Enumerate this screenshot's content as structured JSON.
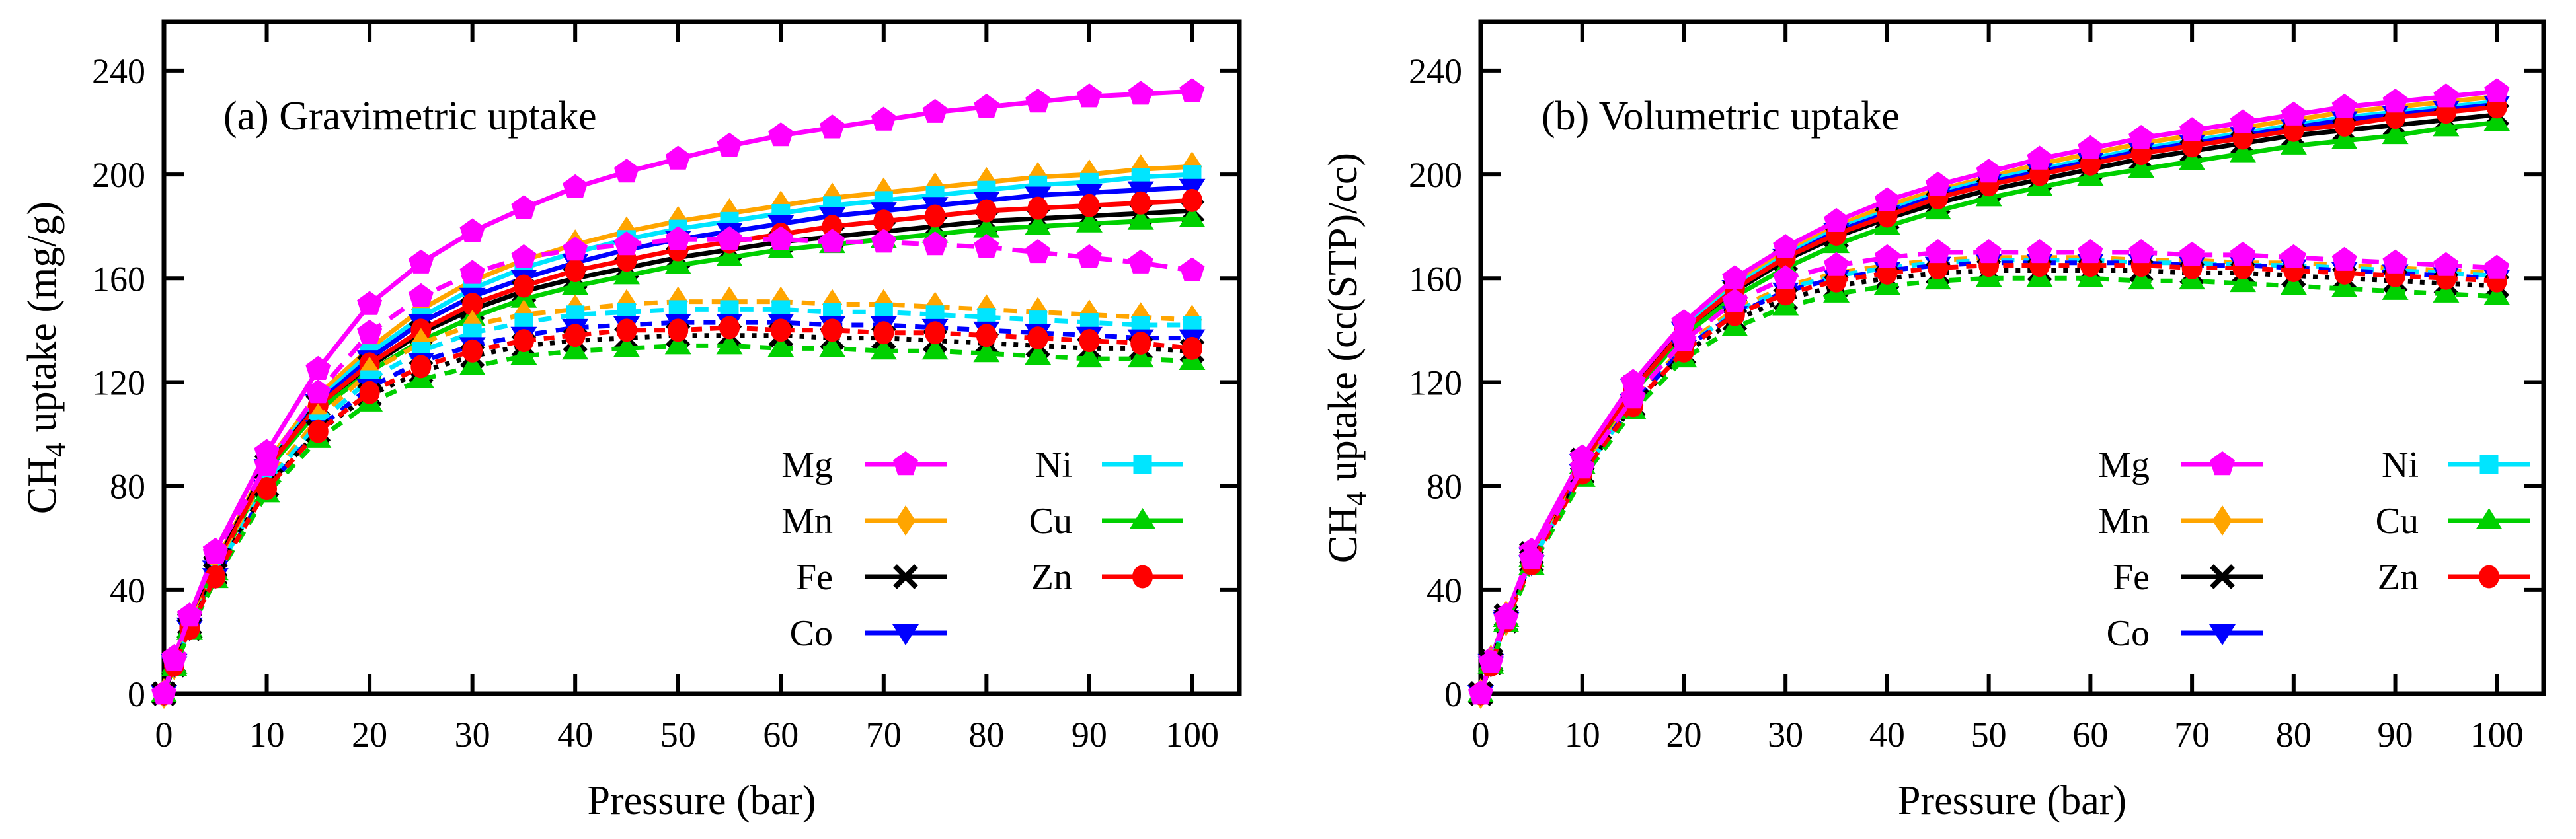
{
  "figure": {
    "background": "#ffffff",
    "xlabel": "Pressure (bar)",
    "x_ticks": [
      0,
      10,
      20,
      30,
      40,
      50,
      60,
      70,
      80,
      90,
      100
    ],
    "y_ticks": [
      0,
      40,
      80,
      120,
      160,
      200,
      240
    ],
    "legend": {
      "col1": [
        "Mg",
        "Mn",
        "Fe",
        "Co"
      ],
      "col2": [
        "Ni",
        "Cu",
        "Zn"
      ]
    },
    "series_styles": {
      "Mg": {
        "color": "#ff00ff",
        "marker": "pentagon-icon",
        "dash": "26 16"
      },
      "Mn": {
        "color": "#ffa500",
        "marker": "diamond-icon",
        "dash": "20 14"
      },
      "Fe": {
        "color": "#000000",
        "marker": "x-cross-icon",
        "dash": "7 11"
      },
      "Co": {
        "color": "#0000ff",
        "marker": "triangle-down-icon",
        "dash": "18 14"
      },
      "Ni": {
        "color": "#00e5ff",
        "marker": "square-icon",
        "dash": "20 14"
      },
      "Cu": {
        "color": "#00d000",
        "marker": "triangle-up-icon",
        "dash": "18 14"
      },
      "Zn": {
        "color": "#ff0000",
        "marker": "circle-icon",
        "dash": "16 12"
      }
    }
  },
  "chart_data": [
    {
      "type": "line",
      "panel": "a",
      "title": "(a) Gravimetric uptake",
      "xlabel": "Pressure (bar)",
      "ylabel": "CH4 uptake (mg/g)",
      "ylabel_parts": {
        "pre": "CH",
        "sub": "4",
        "post": " uptake (mg/g)"
      },
      "xlim": [
        0,
        104.6
      ],
      "ylim": [
        0,
        258.8
      ],
      "x_ticks": [
        0,
        10,
        20,
        30,
        40,
        50,
        60,
        70,
        80,
        90,
        100
      ],
      "y_ticks": [
        0,
        40,
        80,
        120,
        160,
        200,
        240
      ],
      "grid": false,
      "legend_position": "inside-lower-right",
      "x": [
        0,
        1,
        2.5,
        5,
        10,
        15,
        20,
        25,
        30,
        35,
        40,
        45,
        50,
        55,
        60,
        65,
        70,
        75,
        80,
        85,
        90,
        95,
        100
      ],
      "series": [
        {
          "name": "Mn",
          "style": "solid",
          "values": [
            0,
            12,
            27,
            50,
            89,
            115,
            133,
            148,
            159,
            167,
            173,
            178,
            182,
            185,
            188,
            191,
            193,
            195,
            197,
            199,
            200,
            202,
            203
          ]
        },
        {
          "name": "Ni",
          "style": "solid",
          "values": [
            0,
            12,
            26,
            49,
            88,
            113,
            131,
            145,
            156,
            164,
            170,
            175,
            179,
            182,
            185,
            188,
            190,
            192,
            194,
            196,
            197,
            199,
            200
          ]
        },
        {
          "name": "Co",
          "style": "solid",
          "values": [
            0,
            12,
            26,
            48,
            87,
            112,
            129,
            143,
            153,
            160,
            166,
            171,
            175,
            178,
            181,
            184,
            186,
            188,
            190,
            192,
            193,
            194,
            195
          ]
        },
        {
          "name": "Fe",
          "style": "solid",
          "values": [
            0,
            12,
            27,
            49,
            88,
            111,
            126,
            139,
            148,
            155,
            160,
            164,
            168,
            171,
            174,
            176,
            178,
            180,
            182,
            183,
            184,
            185,
            186
          ]
        },
        {
          "name": "Cu",
          "style": "solid",
          "values": [
            0,
            11,
            25,
            47,
            86,
            109,
            124,
            136,
            145,
            152,
            157,
            161,
            165,
            168,
            171,
            173,
            175,
            177,
            179,
            180,
            181,
            182,
            183
          ]
        },
        {
          "name": "Zn",
          "style": "solid",
          "values": [
            0,
            12,
            26,
            48,
            87,
            111,
            127,
            140,
            150,
            157,
            163,
            167,
            171,
            174,
            177,
            180,
            182,
            184,
            186,
            187,
            188,
            189,
            190
          ]
        },
        {
          "name": "Mg",
          "style": "solid",
          "values": [
            0,
            14,
            30,
            55,
            93,
            125,
            150,
            166,
            178,
            187,
            195,
            201,
            206,
            211,
            215,
            218,
            221,
            224,
            226,
            228,
            230,
            231,
            232
          ]
        },
        {
          "name": "Mn",
          "style": "dashed",
          "values": [
            0,
            11,
            26,
            47,
            82,
            106,
            124,
            135,
            142,
            146,
            148,
            150,
            151,
            151,
            151,
            150,
            150,
            149,
            148,
            147,
            146,
            145,
            144
          ]
        },
        {
          "name": "Ni",
          "style": "dashed",
          "values": [
            0,
            11,
            25,
            46,
            81,
            104,
            121,
            132,
            139,
            143,
            146,
            147,
            148,
            148,
            148,
            147,
            147,
            146,
            145,
            144,
            143,
            142,
            142
          ]
        },
        {
          "name": "Co",
          "style": "dashed",
          "values": [
            0,
            11,
            25,
            45,
            79,
            102,
            118,
            128,
            134,
            138,
            141,
            142,
            143,
            143,
            143,
            142,
            142,
            141,
            140,
            139,
            138,
            137,
            137
          ]
        },
        {
          "name": "Fe",
          "style": "dashed",
          "values": [
            0,
            11,
            25,
            46,
            80,
            101,
            115,
            124,
            130,
            134,
            136,
            137,
            138,
            138,
            138,
            137,
            137,
            136,
            135,
            134,
            133,
            133,
            132
          ]
        },
        {
          "name": "Cu",
          "style": "dashed",
          "values": [
            0,
            10,
            24,
            44,
            77,
            98,
            112,
            121,
            126,
            130,
            132,
            133,
            134,
            134,
            133,
            133,
            132,
            132,
            131,
            130,
            129,
            129,
            128
          ]
        },
        {
          "name": "Zn",
          "style": "dashed",
          "values": [
            0,
            11,
            25,
            45,
            79,
            101,
            116,
            126,
            132,
            136,
            138,
            140,
            140,
            141,
            140,
            140,
            139,
            139,
            138,
            137,
            136,
            135,
            133
          ]
        },
        {
          "name": "Mg",
          "style": "dashed",
          "values": [
            0,
            13,
            30,
            54,
            88,
            116,
            139,
            153,
            162,
            168,
            171,
            173,
            175,
            175,
            175,
            174,
            174,
            173,
            172,
            170,
            168,
            166,
            163
          ]
        }
      ]
    },
    {
      "type": "line",
      "panel": "b",
      "title": "(b) Volumetric uptake",
      "xlabel": "Pressure (bar)",
      "ylabel": "CH4 uptake (cc(STP)/cc)",
      "ylabel_parts": {
        "pre": "CH",
        "sub": "4",
        "post": " uptake (cc(STP)/cc)"
      },
      "xlim": [
        0,
        104.6
      ],
      "ylim": [
        0,
        258.8
      ],
      "x_ticks": [
        0,
        10,
        20,
        30,
        40,
        50,
        60,
        70,
        80,
        90,
        100
      ],
      "y_ticks": [
        0,
        40,
        80,
        120,
        160,
        200,
        240
      ],
      "grid": false,
      "legend_position": "inside-lower-right",
      "x": [
        0,
        1,
        2.5,
        5,
        10,
        15,
        20,
        25,
        30,
        35,
        40,
        45,
        50,
        55,
        60,
        65,
        70,
        75,
        80,
        85,
        90,
        95,
        100
      ],
      "series": [
        {
          "name": "Mn",
          "style": "solid",
          "values": [
            0,
            13,
            30,
            54,
            90,
            119,
            142,
            158,
            170,
            180,
            188,
            194,
            199,
            204,
            208,
            212,
            215,
            218,
            221,
            224,
            226,
            228,
            230
          ]
        },
        {
          "name": "Ni",
          "style": "solid",
          "values": [
            0,
            12,
            29,
            54,
            90,
            118,
            141,
            157,
            169,
            179,
            186,
            193,
            198,
            202,
            206,
            210,
            213,
            216,
            219,
            222,
            224,
            226,
            228
          ]
        },
        {
          "name": "Co",
          "style": "solid",
          "values": [
            0,
            12,
            29,
            53,
            89,
            118,
            140,
            156,
            168,
            178,
            185,
            192,
            197,
            201,
            205,
            209,
            212,
            215,
            218,
            221,
            223,
            225,
            227
          ]
        },
        {
          "name": "Fe",
          "style": "solid",
          "values": [
            0,
            13,
            30,
            54,
            90,
            118,
            140,
            155,
            167,
            176,
            183,
            189,
            194,
            198,
            202,
            206,
            209,
            212,
            215,
            217,
            219,
            221,
            223
          ]
        },
        {
          "name": "Cu",
          "style": "solid",
          "values": [
            0,
            12,
            29,
            52,
            88,
            116,
            138,
            153,
            164,
            173,
            180,
            186,
            191,
            195,
            199,
            202,
            205,
            208,
            211,
            213,
            215,
            218,
            220
          ]
        },
        {
          "name": "Zn",
          "style": "solid",
          "values": [
            0,
            12,
            29,
            53,
            89,
            117,
            140,
            156,
            168,
            177,
            184,
            191,
            196,
            200,
            204,
            208,
            211,
            214,
            217,
            219,
            222,
            224,
            226
          ]
        },
        {
          "name": "Mg",
          "style": "solid",
          "values": [
            0,
            13,
            30,
            55,
            91,
            120,
            143,
            160,
            172,
            182,
            190,
            196,
            201,
            206,
            210,
            214,
            217,
            220,
            223,
            226,
            228,
            230,
            232
          ]
        },
        {
          "name": "Mn",
          "style": "dashed",
          "values": [
            0,
            12,
            28,
            51,
            86,
            113,
            134,
            148,
            157,
            162,
            165,
            167,
            168,
            168,
            168,
            167,
            167,
            166,
            166,
            165,
            164,
            163,
            162
          ]
        },
        {
          "name": "Ni",
          "style": "dashed",
          "values": [
            0,
            12,
            28,
            51,
            85,
            112,
            133,
            147,
            156,
            161,
            164,
            166,
            167,
            167,
            167,
            166,
            166,
            165,
            165,
            164,
            163,
            162,
            161
          ]
        },
        {
          "name": "Co",
          "style": "dashed",
          "values": [
            0,
            11,
            28,
            50,
            85,
            112,
            133,
            146,
            155,
            160,
            163,
            165,
            166,
            166,
            166,
            166,
            165,
            165,
            164,
            163,
            162,
            161,
            160
          ]
        },
        {
          "name": "Fe",
          "style": "dashed",
          "values": [
            0,
            12,
            28,
            51,
            85,
            111,
            131,
            144,
            152,
            157,
            160,
            162,
            163,
            163,
            163,
            163,
            162,
            162,
            161,
            160,
            159,
            158,
            157
          ]
        },
        {
          "name": "Cu",
          "style": "dashed",
          "values": [
            0,
            11,
            27,
            49,
            83,
            109,
            129,
            141,
            149,
            154,
            157,
            159,
            160,
            160,
            160,
            159,
            159,
            158,
            157,
            156,
            155,
            154,
            153
          ]
        },
        {
          "name": "Zn",
          "style": "dashed",
          "values": [
            0,
            11,
            28,
            50,
            85,
            111,
            132,
            146,
            154,
            159,
            162,
            164,
            165,
            165,
            165,
            165,
            164,
            164,
            163,
            162,
            161,
            160,
            159
          ]
        },
        {
          "name": "Mg",
          "style": "dashed",
          "values": [
            0,
            12,
            29,
            52,
            87,
            114,
            136,
            151,
            160,
            165,
            168,
            170,
            170,
            170,
            170,
            170,
            169,
            169,
            168,
            167,
            166,
            165,
            164
          ]
        }
      ]
    }
  ]
}
